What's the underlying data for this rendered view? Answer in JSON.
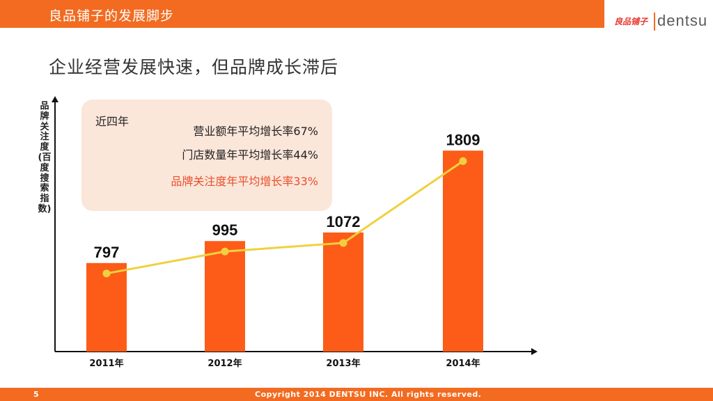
{
  "header": {
    "title": "良品铺子的发展脚步",
    "brand_cn": "良品铺子",
    "brand_en": "dentsu"
  },
  "subtitle": "企业经营发展快速，但品牌成长滞后",
  "infobox": {
    "lead": "近四年",
    "stats": [
      "营业额年平均增长率67%",
      "门店数量年平均增长率44%",
      "品牌关注度年平均增长率33%"
    ]
  },
  "footer": {
    "page_number": "5",
    "copyright": "Copyright 2014 DENTSU INC. All rights reserved."
  },
  "colors": {
    "accent": "#f26b21",
    "bar": "#fd5c18",
    "line": "#f0d040",
    "highlight": "#e8502a"
  },
  "chart_data": {
    "type": "bar",
    "title": "",
    "ylabel": "品牌关注度(百度搜索指数)",
    "xlabel": "",
    "categories": [
      "2011年",
      "2012年",
      "2013年",
      "2014年"
    ],
    "series": [
      {
        "values": [
          797,
          995,
          1072,
          1809
        ]
      }
    ],
    "overlay_line": true,
    "grid": false,
    "ylim": [
      0,
      2300
    ]
  }
}
